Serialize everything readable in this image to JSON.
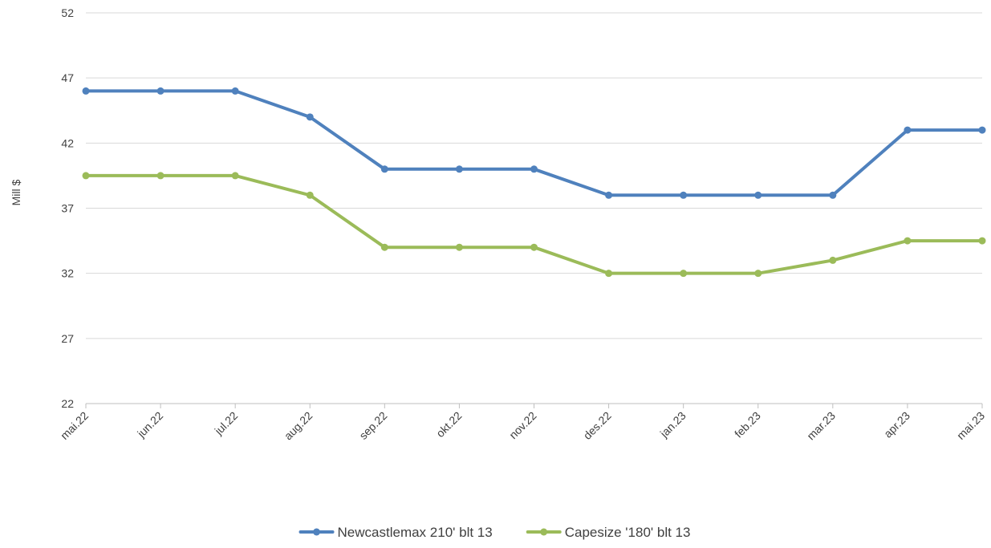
{
  "chart_data": {
    "type": "line",
    "title": "",
    "xlabel": "",
    "ylabel": "Mill $",
    "categories": [
      "mai.22",
      "jun.22",
      "jul.22",
      "aug.22",
      "sep.22",
      "okt.22",
      "nov.22",
      "des.22",
      "jan.23",
      "feb.23",
      "mar.23",
      "apr.23",
      "mai.23"
    ],
    "y_ticks": [
      "22",
      "27",
      "32",
      "37",
      "42",
      "47",
      "52"
    ],
    "ylim": [
      22,
      52
    ],
    "grid": true,
    "legend_position": "bottom",
    "series": [
      {
        "name": "Newcastlemax 210' blt 13",
        "color": "#4f81bd",
        "values": [
          46,
          46,
          46,
          44,
          40,
          40,
          40,
          38,
          38,
          38,
          38,
          43,
          43
        ]
      },
      {
        "name": "Capesize '180' blt 13",
        "color": "#9bbb59",
        "values": [
          39.5,
          39.5,
          39.5,
          38,
          34,
          34,
          34,
          32,
          32,
          32,
          33,
          34.5,
          34.5
        ]
      }
    ]
  }
}
